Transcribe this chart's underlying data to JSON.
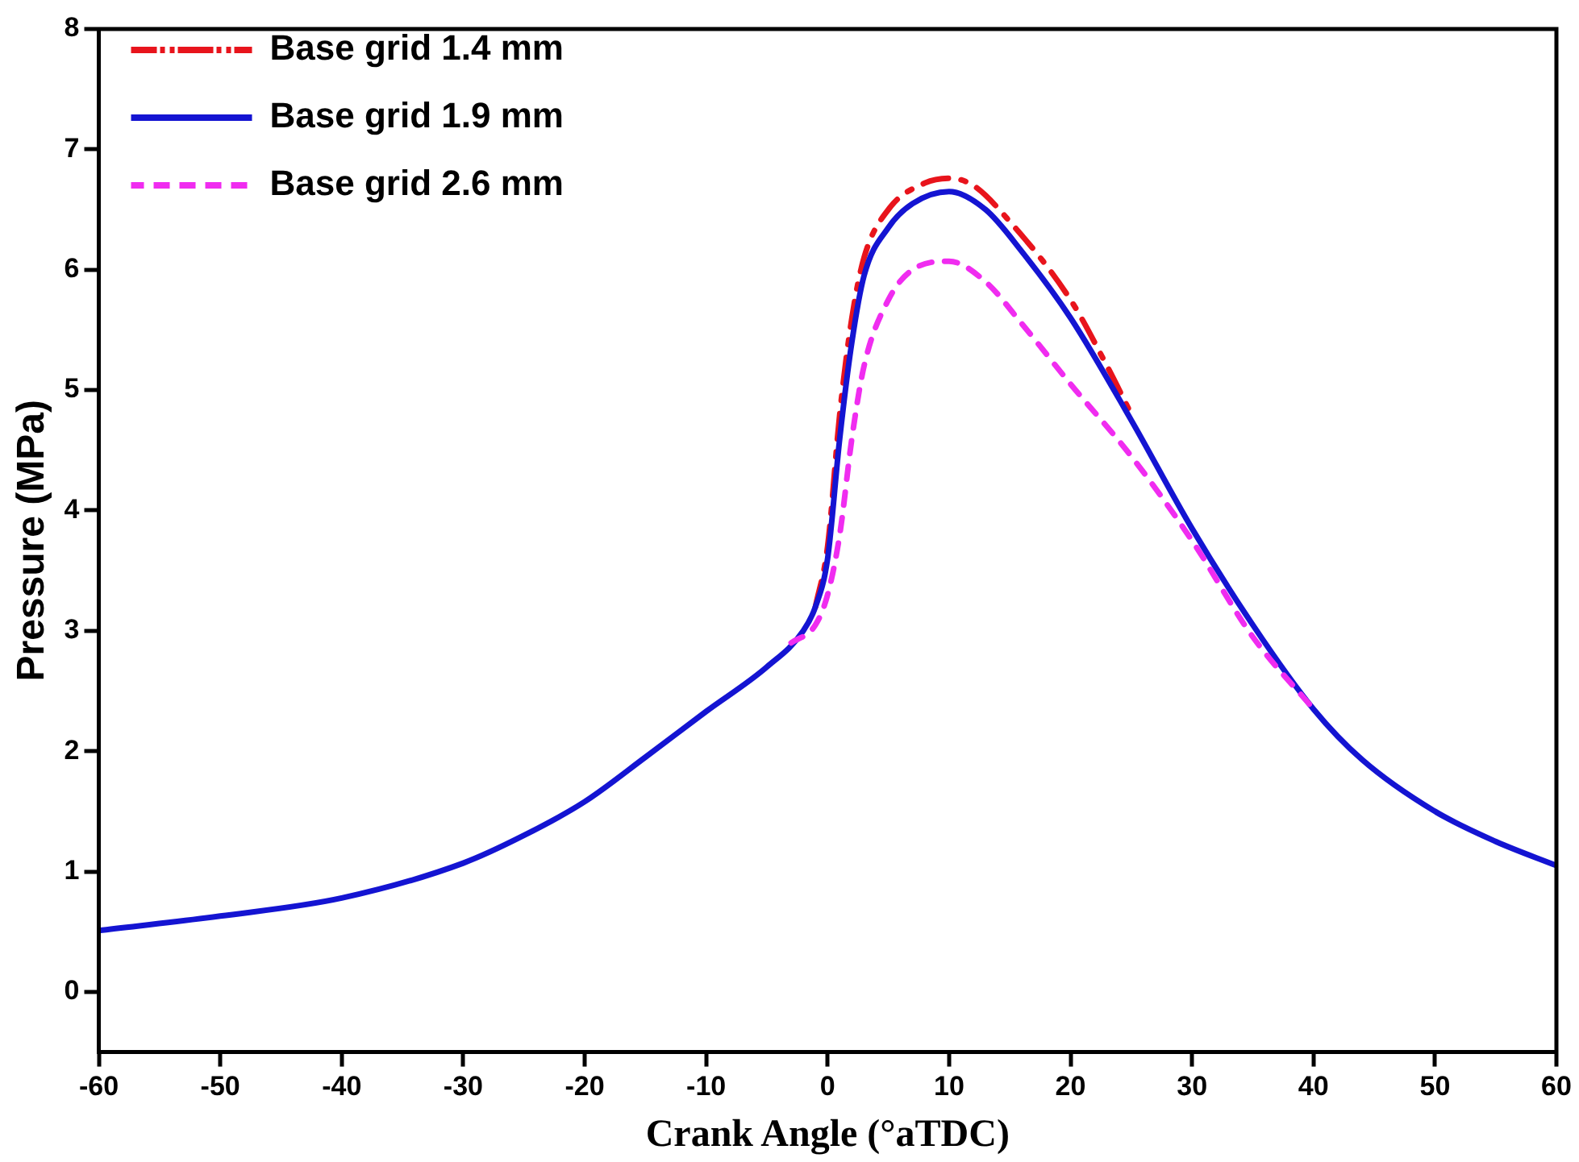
{
  "chart_data": {
    "type": "line",
    "xlabel": "Crank Angle (°aTDC)",
    "ylabel": "Pressure (MPa)",
    "xlim": [
      -60,
      60
    ],
    "xticks": [
      -60,
      -50,
      -40,
      -30,
      -20,
      -10,
      0,
      10,
      20,
      30,
      40,
      50,
      60
    ],
    "ylim": [
      -0.5,
      8
    ],
    "yticks": [
      0,
      1,
      2,
      3,
      4,
      5,
      6,
      7,
      8
    ],
    "grid": false,
    "legend": "top left",
    "marker": "none",
    "series": [
      {
        "name": "Base grid 1.4 mm",
        "color": "#e8141c",
        "line_style": "dashdot",
        "x": [
          -1,
          0,
          1,
          2,
          3,
          5,
          8,
          10,
          12,
          15,
          20,
          23,
          25
        ],
        "values": [
          3.2,
          3.7,
          4.8,
          5.6,
          6.1,
          6.5,
          6.72,
          6.76,
          6.7,
          6.4,
          5.75,
          5.2,
          4.8
        ]
      },
      {
        "name": "Base grid 1.9 mm",
        "color": "#1414d2",
        "line_style": "solid",
        "x": [
          -60,
          -50,
          -40,
          -30,
          -25,
          -20,
          -15,
          -10,
          -5,
          -2,
          -1,
          0,
          1,
          2,
          3,
          5,
          7,
          10,
          13,
          16,
          20,
          25,
          30,
          35,
          40,
          44,
          50,
          55,
          60
        ],
        "values": [
          0.51,
          0.63,
          0.78,
          1.07,
          1.3,
          1.58,
          1.95,
          2.33,
          2.7,
          3.0,
          3.2,
          3.6,
          4.6,
          5.4,
          5.95,
          6.35,
          6.55,
          6.65,
          6.5,
          6.15,
          5.6,
          4.75,
          3.85,
          3.05,
          2.35,
          1.93,
          1.5,
          1.25,
          1.05
        ]
      },
      {
        "name": "Base grid 2.6 mm",
        "color": "#f02cf0",
        "line_style": "dashed",
        "x": [
          -3,
          -1,
          0,
          1,
          2,
          3,
          5,
          7,
          10,
          13,
          16,
          20,
          25,
          30,
          35,
          40
        ],
        "values": [
          2.9,
          3.05,
          3.3,
          3.8,
          4.6,
          5.2,
          5.75,
          6.0,
          6.07,
          5.9,
          5.55,
          5.05,
          4.45,
          3.75,
          2.95,
          2.35
        ]
      }
    ]
  }
}
